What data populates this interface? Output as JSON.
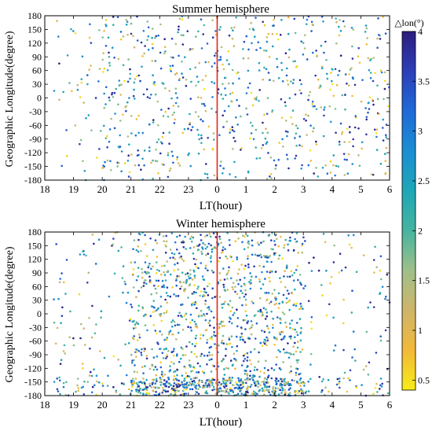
{
  "chart_data": [
    {
      "type": "scatter",
      "title": "Summer hemisphere",
      "xlabel": "LT(hour)",
      "ylabel": "Geographic Longitude(degree)",
      "x_ticks": [
        "18",
        "19",
        "20",
        "21",
        "22",
        "23",
        "0",
        "1",
        "2",
        "3",
        "4",
        "5",
        "6"
      ],
      "y_ticks": [
        "180",
        "150",
        "120",
        "90",
        "60",
        "30",
        "0",
        "-30",
        "-60",
        "-90",
        "-120",
        "-150",
        "-180"
      ],
      "xlim_hours_after_18LT": [
        0,
        12
      ],
      "ylim": [
        -180,
        180
      ],
      "reference_line": {
        "lt": "0",
        "color": "#e8231c"
      },
      "point_count_estimate": 800,
      "density_note": "sparse before 20 LT, dense 20-6 LT",
      "value_range": [
        0.4,
        4.0
      ]
    },
    {
      "type": "scatter",
      "title": "Winter hemisphere",
      "xlabel": "LT(hour)",
      "ylabel": "Geographic Longitude(degree)",
      "x_ticks": [
        "18",
        "19",
        "20",
        "21",
        "22",
        "23",
        "0",
        "1",
        "2",
        "3",
        "4",
        "5",
        "6"
      ],
      "y_ticks": [
        "180",
        "150",
        "120",
        "90",
        "60",
        "30",
        "0",
        "-30",
        "-60",
        "-90",
        "-120",
        "-150",
        "-180"
      ],
      "xlim_hours_after_18LT": [
        0,
        12
      ],
      "ylim": [
        -180,
        180
      ],
      "reference_line": {
        "lt": "0",
        "color": "#e8231c"
      },
      "point_count_estimate": 1700,
      "density_note": "sparse before 20 LT, very dense 21-3 LT",
      "value_range": [
        0.4,
        4.0
      ]
    }
  ],
  "colorbar": {
    "label": "△lon(°)",
    "ticks": [
      "4",
      "3.5",
      "3",
      "2.5",
      "2",
      "1.5",
      "1",
      "0.5"
    ],
    "range": [
      0.4,
      4.0
    ],
    "colormap": [
      "#f7ec18",
      "#f2b93a",
      "#cfb56a",
      "#9fc08a",
      "#46b49f",
      "#1fa7b8",
      "#1c8ed2",
      "#1f6ad8",
      "#2d3fb8",
      "#2c1d7d"
    ]
  }
}
